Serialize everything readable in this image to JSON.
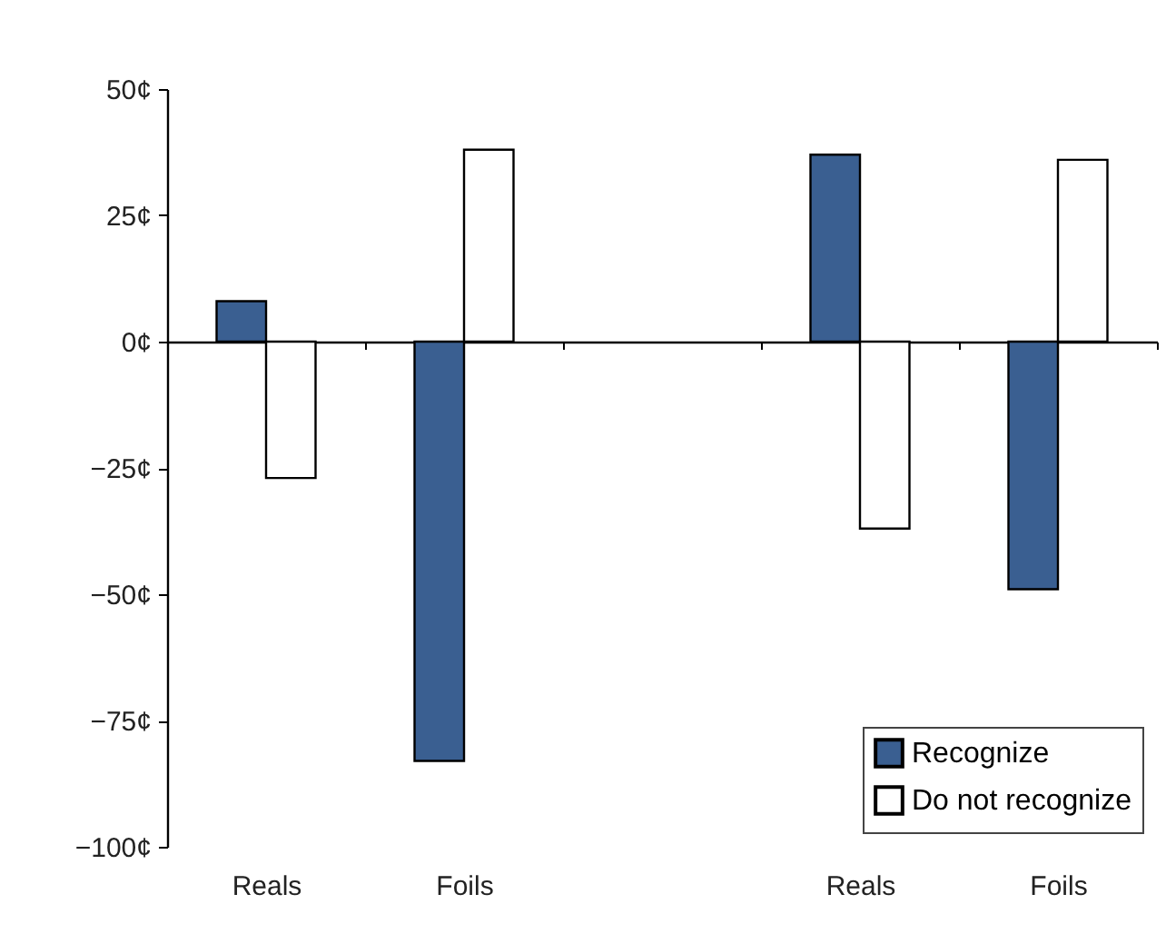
{
  "chart_data": {
    "type": "bar",
    "categories": [
      "Reals",
      "Foils",
      null,
      "Reals",
      "Foils"
    ],
    "series": [
      {
        "name": "Recognize",
        "color": "#3a5f91",
        "values": [
          8,
          -83,
          null,
          37,
          -49
        ]
      },
      {
        "name": "Do not recognize",
        "color": "#ffffff",
        "values": [
          -27,
          38,
          null,
          -37,
          36
        ]
      }
    ],
    "ylim": [
      -100,
      50
    ],
    "yticks": [
      {
        "value": -100,
        "label": "−100¢"
      },
      {
        "value": -75,
        "label": "−75¢"
      },
      {
        "value": -50,
        "label": "−50¢"
      },
      {
        "value": -25,
        "label": "−25¢"
      },
      {
        "value": 0,
        "label": "0¢"
      },
      {
        "value": 25,
        "label": "25¢"
      },
      {
        "value": 50,
        "label": "50¢"
      }
    ],
    "legend": "bottom right"
  }
}
